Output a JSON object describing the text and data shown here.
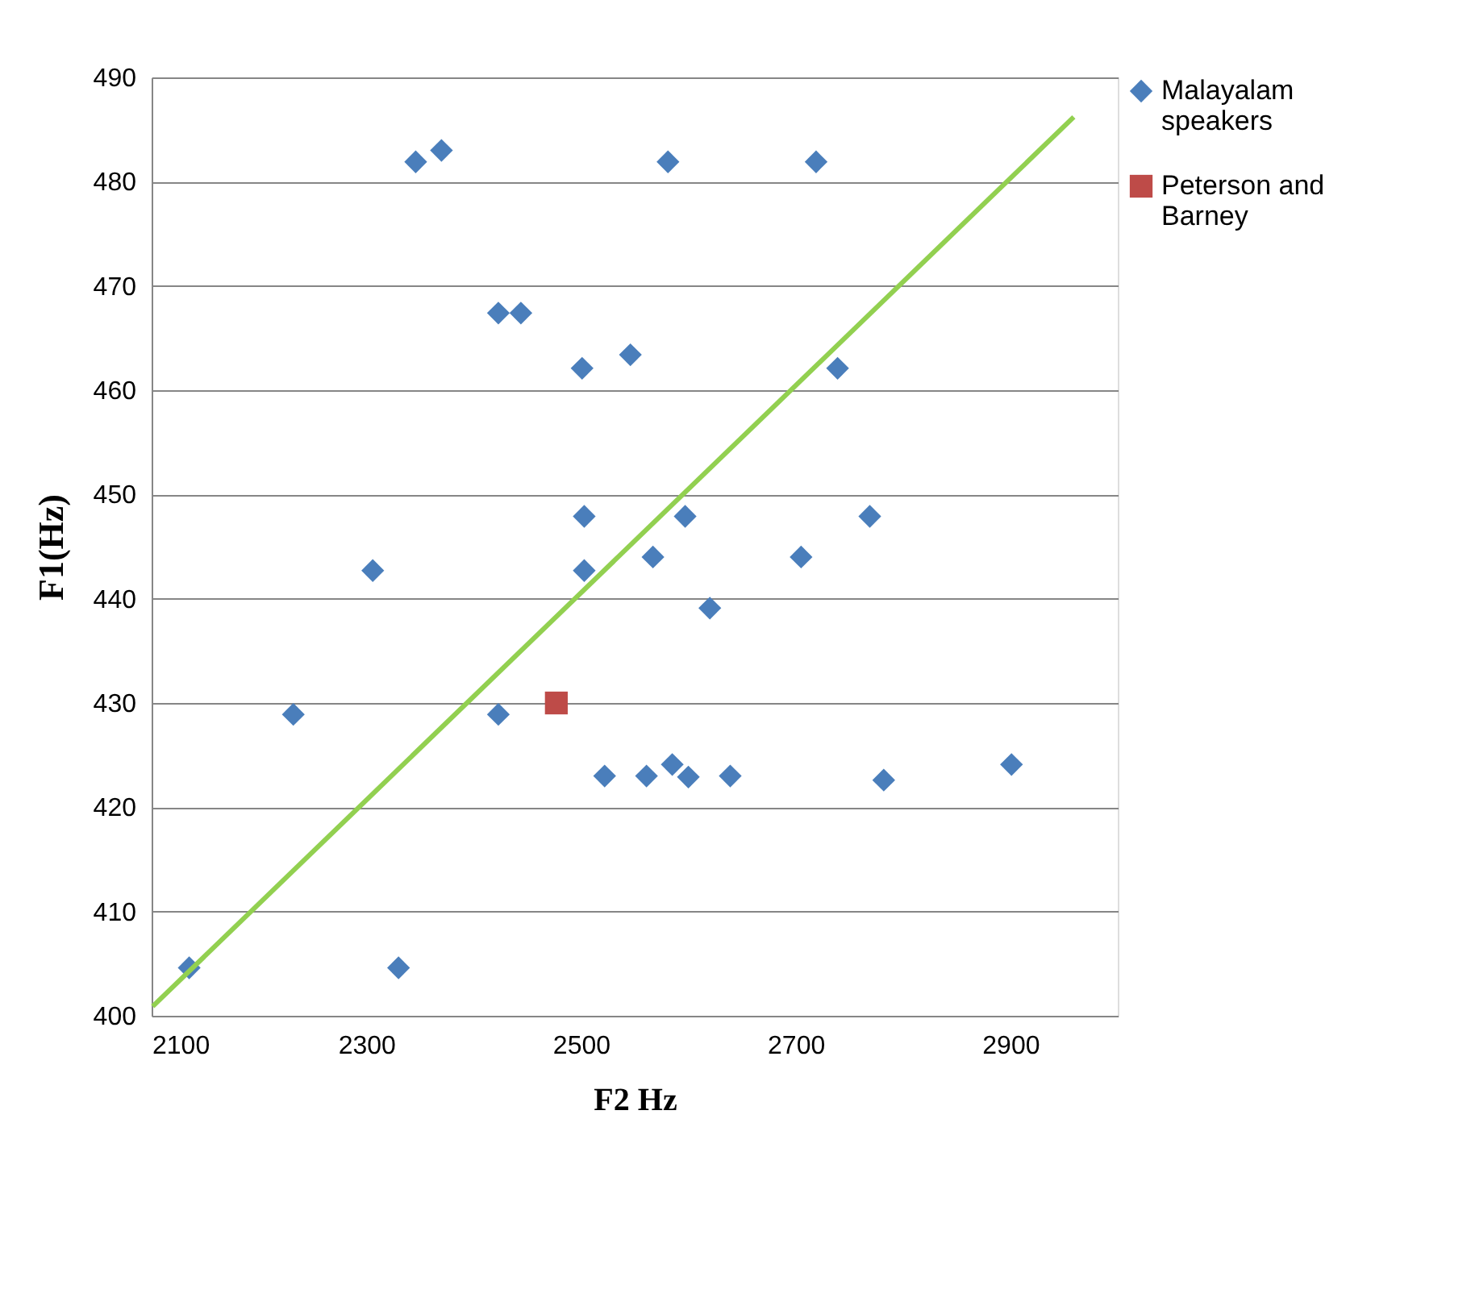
{
  "chart_data": {
    "type": "scatter",
    "xlabel": "F2 Hz",
    "ylabel": "F1(Hz)",
    "xlim": [
      2100,
      3000
    ],
    "xticks": [
      2100,
      2300,
      2500,
      2700,
      2900
    ],
    "ylim": [
      400,
      490
    ],
    "yticks": [
      400,
      410,
      420,
      430,
      440,
      450,
      460,
      470,
      480,
      490
    ],
    "grid": "y",
    "legend": "right",
    "series": [
      {
        "name": "Malayalam speakers",
        "type": "scatter",
        "marker": "diamond",
        "color": "#4a7ebb",
        "x": [
          2135,
          2232,
          2306,
          2330,
          2346,
          2370,
          2423,
          2444,
          2423,
          2503,
          2503,
          2501,
          2546,
          2522,
          2561,
          2567,
          2581,
          2585,
          2597,
          2600,
          2620,
          2639,
          2705,
          2719,
          2739,
          2769,
          2782,
          2901
        ],
        "values": [
          404.6,
          428.9,
          442.7,
          404.6,
          481.9,
          483.0,
          467.4,
          467.4,
          428.9,
          447.9,
          442.7,
          462.1,
          463.4,
          423.0,
          423.0,
          444.0,
          481.9,
          424.1,
          447.9,
          422.9,
          439.1,
          423.0,
          444.0,
          481.9,
          462.1,
          447.9,
          422.6,
          424.1
        ]
      },
      {
        "name": "Peterson and Barney",
        "type": "scatter",
        "marker": "square",
        "color": "#be4b48",
        "x": [
          2477
        ],
        "values": [
          430
        ]
      },
      {
        "type": "line",
        "color": "#92d050",
        "line_style": "solid",
        "x": [
          2101,
          2959
        ],
        "values": [
          400.9,
          486.2
        ]
      }
    ]
  }
}
